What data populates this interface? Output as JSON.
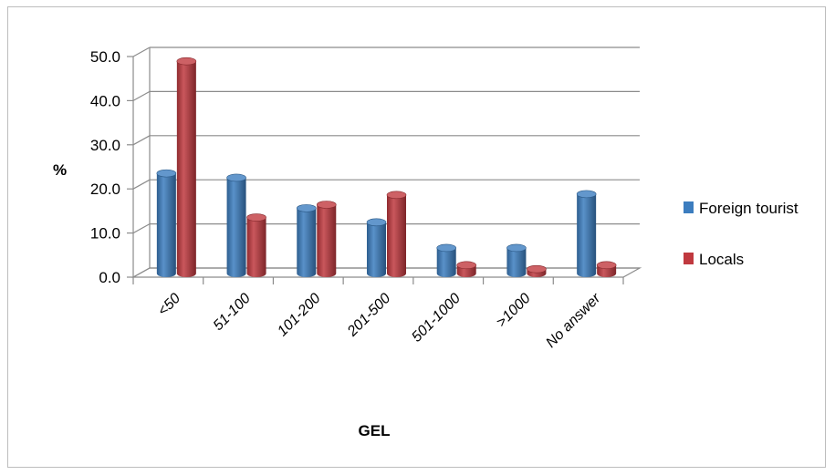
{
  "chart_data": {
    "type": "bar",
    "categories": [
      "<50",
      "51-100",
      "101-200",
      "201-500",
      "501-1000",
      ">1000",
      "No answer"
    ],
    "series": [
      {
        "name": "Foreign tourist",
        "values": [
          22.7,
          21.7,
          14.8,
          11.6,
          5.8,
          5.8,
          18.0
        ],
        "color": "#3c7dbf"
      },
      {
        "name": "Locals",
        "values": [
          48.1,
          12.7,
          15.6,
          17.8,
          1.9,
          1.0,
          1.9
        ],
        "color": "#c0393f"
      }
    ],
    "ylim": [
      0,
      50
    ],
    "yticks": [
      "0.0",
      "10.0",
      "20.0",
      "30.0",
      "40.0",
      "50.0"
    ],
    "ylabel": "%",
    "xlabel": "GEL",
    "grid": true,
    "legend_position": "right"
  }
}
